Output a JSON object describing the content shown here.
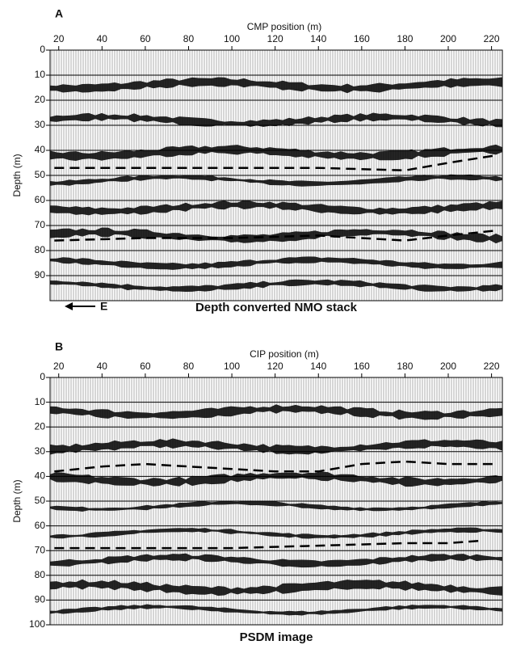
{
  "chart_data": [
    {
      "type": "seismic",
      "panel_label": "A",
      "x_label": "CMP position (m)",
      "y_label": "Depth (m)",
      "caption": "Depth converted NMO stack",
      "annotation": "E",
      "xlim": [
        16,
        225
      ],
      "xticks": [
        20,
        40,
        60,
        80,
        100,
        120,
        140,
        160,
        180,
        200,
        220
      ],
      "ylim": [
        0,
        100
      ],
      "yticks": [
        0,
        10,
        20,
        30,
        40,
        50,
        60,
        70,
        80,
        90
      ],
      "y_inverted": true,
      "grid": true,
      "line_style": "dashed",
      "series": [
        {
          "color": "#000000",
          "x": [
            18,
            60,
            100,
            140,
            180,
            200,
            222
          ],
          "values": [
            47,
            47,
            47,
            47,
            48,
            45,
            42
          ]
        },
        {
          "color": "#000000",
          "x": [
            18,
            60,
            100,
            140,
            180,
            200,
            222
          ],
          "values": [
            76,
            75,
            75,
            74,
            76,
            74,
            72
          ]
        }
      ]
    },
    {
      "type": "seismic",
      "panel_label": "B",
      "x_label": "CIP position (m)",
      "y_label": "Depth (m)",
      "caption": "PSDM image",
      "xlim": [
        16,
        225
      ],
      "xticks": [
        20,
        40,
        60,
        80,
        100,
        120,
        140,
        160,
        180,
        200,
        220
      ],
      "ylim": [
        0,
        100
      ],
      "yticks": [
        0,
        10,
        20,
        30,
        40,
        50,
        60,
        70,
        80,
        90,
        100
      ],
      "y_inverted": true,
      "grid": true,
      "line_style": "dashed",
      "series": [
        {
          "color": "#000000",
          "x": [
            18,
            40,
            60,
            80,
            100,
            120,
            140,
            160,
            180,
            200,
            222
          ],
          "values": [
            38,
            36,
            35,
            36,
            37,
            38,
            38,
            35,
            34,
            35,
            35
          ]
        },
        {
          "color": "#000000",
          "x": [
            18,
            60,
            100,
            140,
            180,
            200,
            215
          ],
          "values": [
            69,
            69,
            69,
            68,
            67,
            67,
            66
          ]
        }
      ]
    }
  ]
}
